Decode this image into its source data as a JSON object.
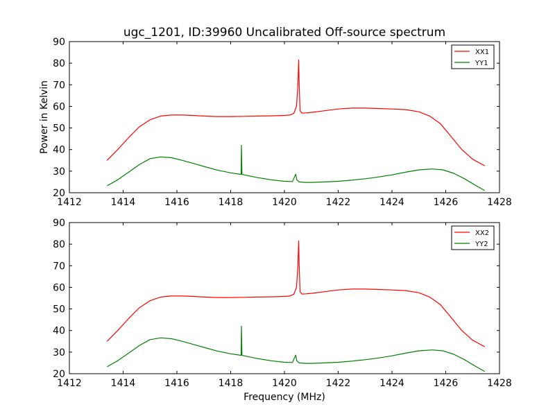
{
  "chart_data": [
    {
      "type": "line",
      "title": "ugc_1201, ID:39960 Uncalibrated Off-source spectrum",
      "xlabel": "",
      "ylabel": "Power in Kelvin",
      "xlim": [
        1412,
        1428
      ],
      "ylim": [
        20,
        90
      ],
      "xticks": [
        "1412",
        "1414",
        "1416",
        "1418",
        "1420",
        "1422",
        "1424",
        "1426",
        "1428"
      ],
      "yticks": [
        "20",
        "30",
        "40",
        "50",
        "60",
        "70",
        "80",
        "90"
      ],
      "legend_position": "top-right",
      "series": [
        {
          "name": "XX1",
          "color": "#ff0000",
          "x": [
            1413.4,
            1413.8,
            1414.2,
            1414.6,
            1415.0,
            1415.4,
            1415.8,
            1416.2,
            1416.6,
            1417.0,
            1417.5,
            1418.0,
            1418.5,
            1419.0,
            1419.5,
            1420.0,
            1420.2,
            1420.35,
            1420.45,
            1420.5,
            1420.53,
            1420.55,
            1420.58,
            1420.65,
            1420.8,
            1421.0,
            1421.5,
            1422.0,
            1422.5,
            1423.0,
            1423.5,
            1424.0,
            1424.5,
            1425.0,
            1425.4,
            1425.8,
            1426.2,
            1426.6,
            1427.0,
            1427.45
          ],
          "values": [
            35.0,
            40.0,
            45.5,
            50.5,
            53.8,
            55.5,
            56.0,
            56.0,
            55.8,
            55.5,
            55.3,
            55.3,
            55.4,
            55.5,
            55.6,
            55.8,
            56.0,
            56.8,
            60.0,
            70.0,
            81.5,
            70.0,
            58.0,
            56.9,
            57.0,
            57.2,
            58.0,
            58.8,
            59.2,
            59.2,
            59.0,
            58.8,
            58.5,
            57.5,
            55.5,
            52.0,
            46.0,
            40.0,
            35.5,
            32.5
          ]
        },
        {
          "name": "YY1",
          "color": "#008000",
          "x": [
            1413.4,
            1413.8,
            1414.2,
            1414.6,
            1415.0,
            1415.4,
            1415.8,
            1416.2,
            1416.6,
            1417.0,
            1417.5,
            1418.0,
            1418.39,
            1418.4,
            1418.42,
            1418.5,
            1419.0,
            1419.5,
            1420.0,
            1420.3,
            1420.38,
            1420.42,
            1420.46,
            1420.55,
            1420.8,
            1421.0,
            1421.5,
            1422.0,
            1422.5,
            1423.0,
            1423.5,
            1424.0,
            1424.5,
            1425.0,
            1425.5,
            1425.9,
            1426.3,
            1426.7,
            1427.1,
            1427.45
          ],
          "values": [
            23.2,
            26.0,
            29.5,
            33.0,
            35.8,
            36.6,
            36.2,
            35.0,
            33.6,
            32.2,
            30.5,
            29.2,
            28.5,
            42.0,
            28.5,
            28.3,
            27.0,
            26.0,
            25.3,
            25.2,
            27.5,
            28.6,
            26.0,
            25.0,
            24.8,
            24.8,
            25.0,
            25.3,
            25.8,
            26.5,
            27.3,
            28.3,
            29.5,
            30.6,
            31.0,
            30.6,
            29.0,
            26.5,
            23.5,
            21.0
          ]
        }
      ]
    },
    {
      "type": "line",
      "title": "",
      "xlabel": "Frequency (MHz)",
      "ylabel": "",
      "xlim": [
        1412,
        1428
      ],
      "ylim": [
        20,
        90
      ],
      "xticks": [
        "1412",
        "1414",
        "1416",
        "1418",
        "1420",
        "1422",
        "1424",
        "1426",
        "1428"
      ],
      "yticks": [
        "20",
        "30",
        "40",
        "50",
        "60",
        "70",
        "80",
        "90"
      ],
      "legend_position": "top-right",
      "series": [
        {
          "name": "XX2",
          "color": "#ff0000",
          "x": [
            1413.4,
            1413.8,
            1414.2,
            1414.6,
            1415.0,
            1415.4,
            1415.8,
            1416.2,
            1416.6,
            1417.0,
            1417.5,
            1418.0,
            1418.5,
            1419.0,
            1419.5,
            1420.0,
            1420.2,
            1420.35,
            1420.45,
            1420.5,
            1420.53,
            1420.55,
            1420.58,
            1420.65,
            1420.8,
            1421.0,
            1421.5,
            1422.0,
            1422.5,
            1423.0,
            1423.5,
            1424.0,
            1424.5,
            1425.0,
            1425.4,
            1425.8,
            1426.2,
            1426.6,
            1427.0,
            1427.45
          ],
          "values": [
            35.0,
            40.0,
            45.5,
            50.5,
            53.8,
            55.5,
            56.0,
            56.0,
            55.8,
            55.5,
            55.3,
            55.3,
            55.4,
            55.5,
            55.6,
            55.8,
            56.0,
            56.8,
            60.0,
            70.0,
            81.5,
            70.0,
            58.0,
            56.9,
            57.0,
            57.2,
            58.0,
            58.8,
            59.2,
            59.2,
            59.0,
            58.8,
            58.5,
            57.5,
            55.5,
            52.0,
            46.0,
            40.0,
            35.5,
            32.5
          ]
        },
        {
          "name": "YY2",
          "color": "#008000",
          "x": [
            1413.4,
            1413.8,
            1414.2,
            1414.6,
            1415.0,
            1415.4,
            1415.8,
            1416.2,
            1416.6,
            1417.0,
            1417.5,
            1418.0,
            1418.39,
            1418.4,
            1418.42,
            1418.5,
            1419.0,
            1419.5,
            1420.0,
            1420.3,
            1420.38,
            1420.42,
            1420.46,
            1420.55,
            1420.8,
            1421.0,
            1421.5,
            1422.0,
            1422.5,
            1423.0,
            1423.5,
            1424.0,
            1424.5,
            1425.0,
            1425.5,
            1425.9,
            1426.3,
            1426.7,
            1427.1,
            1427.45
          ],
          "values": [
            23.2,
            26.0,
            29.5,
            33.0,
            35.8,
            36.6,
            36.2,
            35.0,
            33.6,
            32.2,
            30.5,
            29.2,
            28.5,
            42.0,
            28.5,
            28.3,
            27.0,
            26.0,
            25.3,
            25.2,
            27.5,
            28.6,
            26.0,
            25.0,
            24.8,
            24.8,
            25.0,
            25.3,
            25.8,
            26.5,
            27.3,
            28.3,
            29.5,
            30.6,
            31.0,
            30.6,
            29.0,
            26.5,
            23.5,
            21.0
          ]
        }
      ]
    }
  ]
}
